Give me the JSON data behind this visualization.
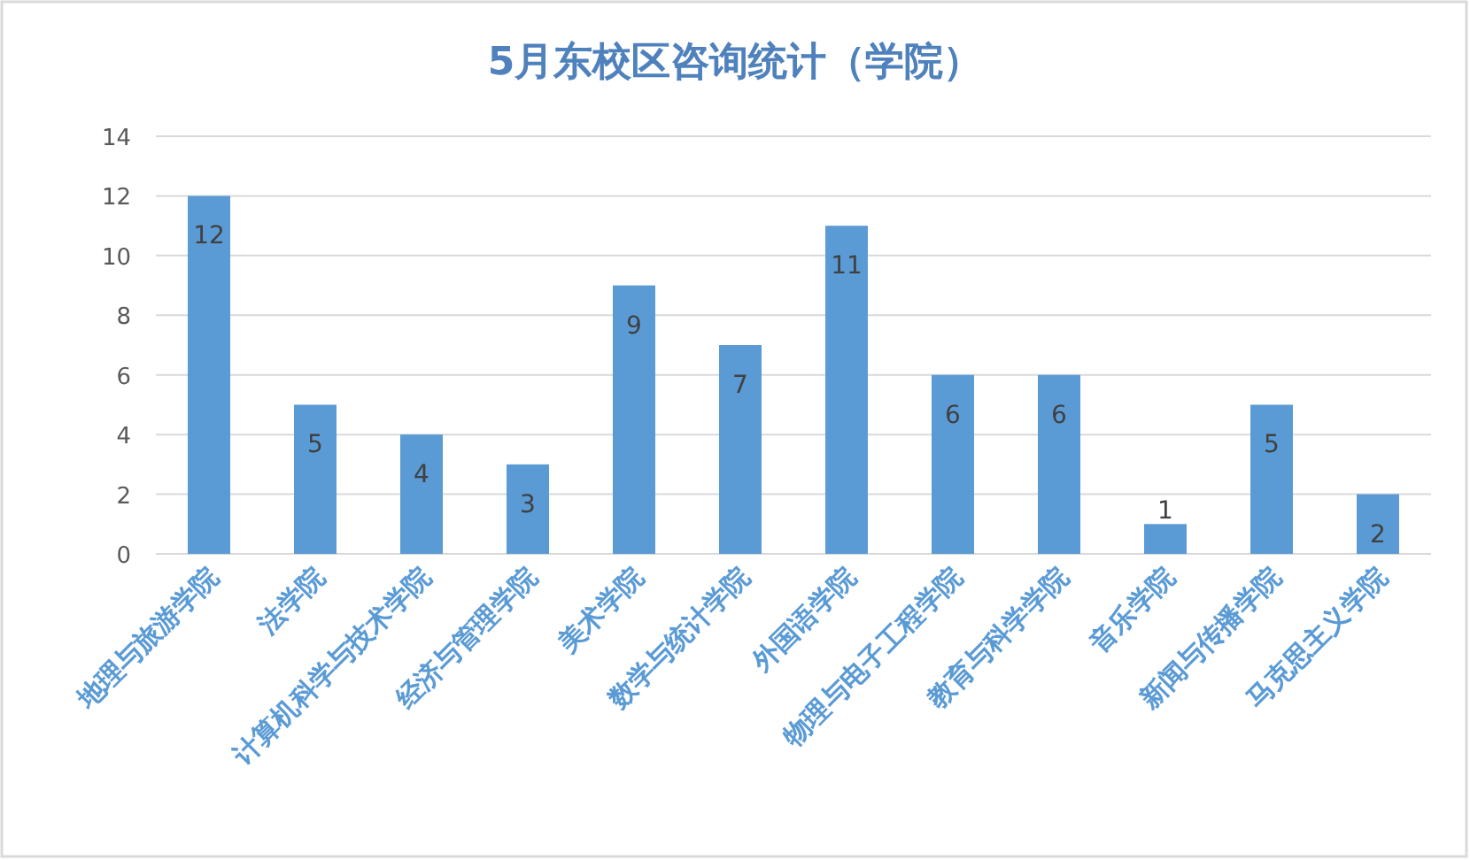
{
  "chart_data": {
    "type": "bar",
    "title": "5月东校区咨询统计（学院）",
    "categories": [
      "地理与旅游学院",
      "法学院",
      "计算机科学与技术学院",
      "经济与管理学院",
      "美术学院",
      "数学与统计学院",
      "外国语学院",
      "物理与电子工程学院",
      "教育与科学学院",
      "音乐学院",
      "新闻与传播学院",
      "马克思主义学院"
    ],
    "values": [
      12,
      5,
      4,
      3,
      9,
      7,
      11,
      6,
      6,
      1,
      5,
      2
    ],
    "color": "#5b9bd5",
    "ylim": [
      0,
      14
    ],
    "yticks": [
      0,
      2,
      4,
      6,
      8,
      10,
      12,
      14
    ],
    "grid": "y",
    "data_labels": true
  }
}
